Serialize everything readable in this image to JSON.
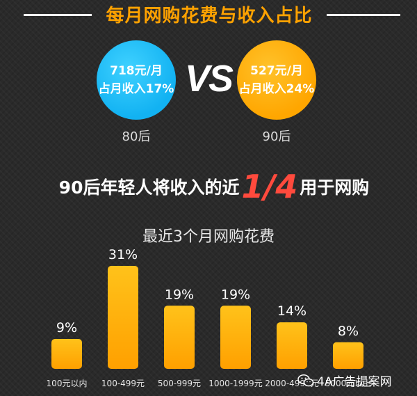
{
  "header": {
    "title": "每月网购花费与收入占比"
  },
  "comparison": {
    "left": {
      "amount": "718元/月",
      "ratio": "占月收入17%",
      "group": "80后",
      "color": "#1fbff5"
    },
    "vs": "VS",
    "right": {
      "amount": "527元/月",
      "ratio": "占月收入24%",
      "group": "90后",
      "color": "#ffa800"
    }
  },
  "headline": {
    "pre": "90后年轻人将收入的近",
    "highlight": "1/4",
    "post": "用于网购",
    "highlight_color": "#ff4a3d"
  },
  "chart_data": {
    "type": "bar",
    "title": "最近3个月网购花费",
    "categories": [
      "100元以内",
      "100-499元",
      "500-999元",
      "1000-1999元",
      "2000-4999元",
      "5000元以上"
    ],
    "values": [
      9,
      31,
      19,
      19,
      14,
      8
    ],
    "value_labels": [
      "9%",
      "31%",
      "19%",
      "19%",
      "14%",
      "8%"
    ],
    "ylim": [
      0,
      31
    ],
    "bar_color": "#ffb000"
  },
  "watermark": {
    "text": "4A广告提案网",
    "icon": "wechat-icon"
  }
}
